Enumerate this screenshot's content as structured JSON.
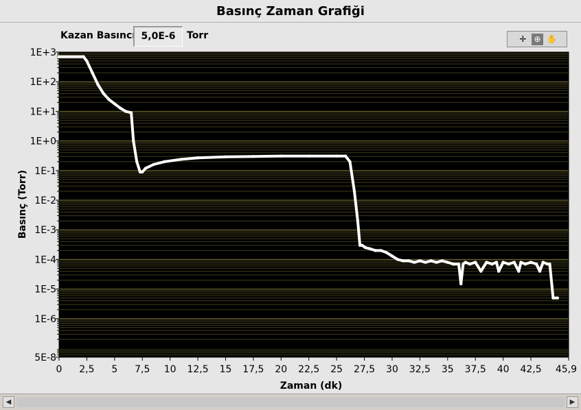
{
  "title": "Basınç Zaman Grafiği",
  "indicator": {
    "label": "Kazan Basıncı",
    "value": "5,0E-6",
    "unit": "Torr"
  },
  "toolbar": {
    "cursor_icon": "crosshair-icon",
    "zoom_icon": "zoom-icon",
    "pan_icon": "hand-pan-icon"
  },
  "colors": {
    "plot_bg": "#000000",
    "grid": "#7f7a3a",
    "trace": "#ffffff",
    "panel": "#e6e6e6"
  },
  "chart_data": {
    "type": "line",
    "title": "",
    "xlabel": "Zaman (dk)",
    "ylabel": "Basınç (Torr)",
    "xlim": [
      0,
      45.9
    ],
    "ylim": [
      5e-08,
      1000
    ],
    "yscale": "log",
    "grid": true,
    "x_ticks": [
      "0",
      "2,5",
      "5",
      "7,5",
      "10",
      "12,5",
      "15",
      "17,5",
      "20",
      "22,5",
      "25",
      "27,5",
      "30",
      "32,5",
      "35",
      "37,5",
      "40",
      "42,5",
      "45,9"
    ],
    "y_ticks": [
      "1E+3",
      "1E+2",
      "1E+1",
      "1E+0",
      "1E-1",
      "1E-2",
      "1E-3",
      "1E-4",
      "1E-5",
      "1E-6",
      "5E-8"
    ],
    "series": [
      {
        "x": [
          0,
          2.2,
          2.5,
          3,
          3.5,
          4,
          4.5,
          5,
          5.5,
          6,
          6.5,
          6.7,
          7.0,
          7.3,
          7.5,
          7.8,
          8.5,
          9.5,
          11,
          12.5,
          15,
          17.5,
          20,
          22.5,
          25,
          25.8,
          26.2,
          26.6,
          26.9,
          27.1,
          27.3,
          27.6,
          28,
          28.5,
          29,
          29.5,
          30,
          30.5,
          31,
          31.5,
          32,
          32.5,
          33,
          33.5,
          34,
          34.5,
          35,
          35.5,
          36,
          36.2,
          36.4,
          36.6,
          37,
          37.5,
          38,
          38.5,
          39,
          39.4,
          39.6,
          40,
          40.5,
          41,
          41.4,
          41.6,
          42,
          42.5,
          43,
          43.3,
          43.6,
          44,
          44.2,
          44.4,
          44.5,
          44.9
        ],
        "y": [
          700,
          700,
          500,
          200,
          80,
          40,
          25,
          18,
          13,
          10,
          9,
          1,
          0.2,
          0.09,
          0.09,
          0.12,
          0.16,
          0.2,
          0.24,
          0.27,
          0.29,
          0.3,
          0.31,
          0.31,
          0.31,
          0.31,
          0.2,
          0.02,
          0.002,
          0.0003,
          0.0003,
          0.00025,
          0.00023,
          0.0002,
          0.0002,
          0.00017,
          0.00013,
          0.0001,
          9e-05,
          9e-05,
          8e-05,
          9e-05,
          8e-05,
          9e-05,
          8e-05,
          9e-05,
          8e-05,
          7e-05,
          7e-05,
          1.5e-05,
          7e-05,
          8e-05,
          7e-05,
          8e-05,
          4e-05,
          8e-05,
          7e-05,
          8e-05,
          4e-05,
          8e-05,
          7e-05,
          8e-05,
          4e-05,
          8e-05,
          7e-05,
          8e-05,
          7e-05,
          4e-05,
          8e-05,
          7e-05,
          7e-05,
          1.2e-05,
          5e-06,
          5e-06
        ]
      }
    ]
  }
}
